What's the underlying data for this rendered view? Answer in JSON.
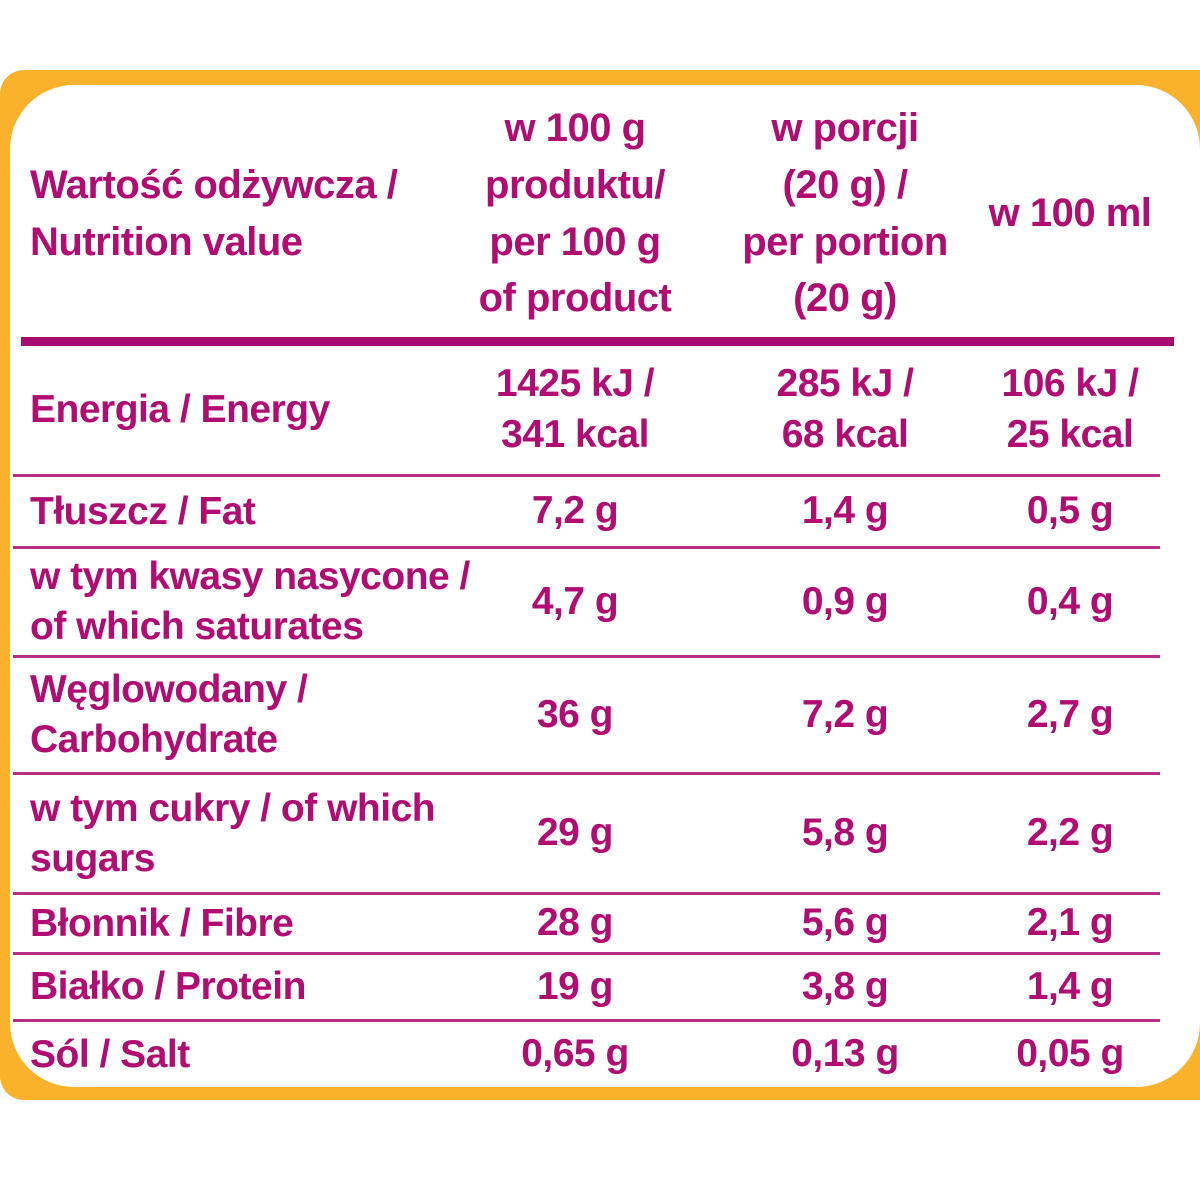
{
  "colors": {
    "magenta": "#B00C72",
    "magenta_line": "#B72E86",
    "magenta_bar": "#A60C6F",
    "yellow": "#FAB12B",
    "card_background": "#FFFFFF"
  },
  "header": {
    "label": "Wartość odżywcza /\nNutrition value",
    "col_per_100g": "w 100 g\nproduktu/\nper 100 g\nof product",
    "col_per_portion": "w porcji\n(20 g) /\nper portion\n(20 g)",
    "col_per_100ml": "w 100 ml"
  },
  "rows": [
    {
      "label": "Energia / Energy",
      "per_100g": "1425 kJ /\n341 kcal",
      "per_portion": "285 kJ /\n68 kcal",
      "per_100ml": "106 kJ /\n25 kcal"
    },
    {
      "label": "Tłuszcz / Fat",
      "per_100g": "7,2 g",
      "per_portion": "1,4 g",
      "per_100ml": "0,5 g"
    },
    {
      "label": "w tym kwasy nasycone /\nof which saturates",
      "per_100g": "4,7 g",
      "per_portion": "0,9 g",
      "per_100ml": "0,4 g"
    },
    {
      "label": "Węglowodany /\nCarbohydrate",
      "per_100g": "36 g",
      "per_portion": "7,2 g",
      "per_100ml": "2,7 g"
    },
    {
      "label": "w tym cukry / of which\nsugars",
      "per_100g": "29 g",
      "per_portion": "5,8 g",
      "per_100ml": "2,2 g"
    },
    {
      "label": "Błonnik / Fibre",
      "per_100g": "28 g",
      "per_portion": "5,6 g",
      "per_100ml": "2,1 g"
    },
    {
      "label": "Białko / Protein",
      "per_100g": "19 g",
      "per_portion": "3,8 g",
      "per_100ml": "1,4 g"
    },
    {
      "label": "Sól / Salt",
      "per_100g": "0,65 g",
      "per_portion": "0,13 g",
      "per_100ml": "0,05 g"
    }
  ]
}
